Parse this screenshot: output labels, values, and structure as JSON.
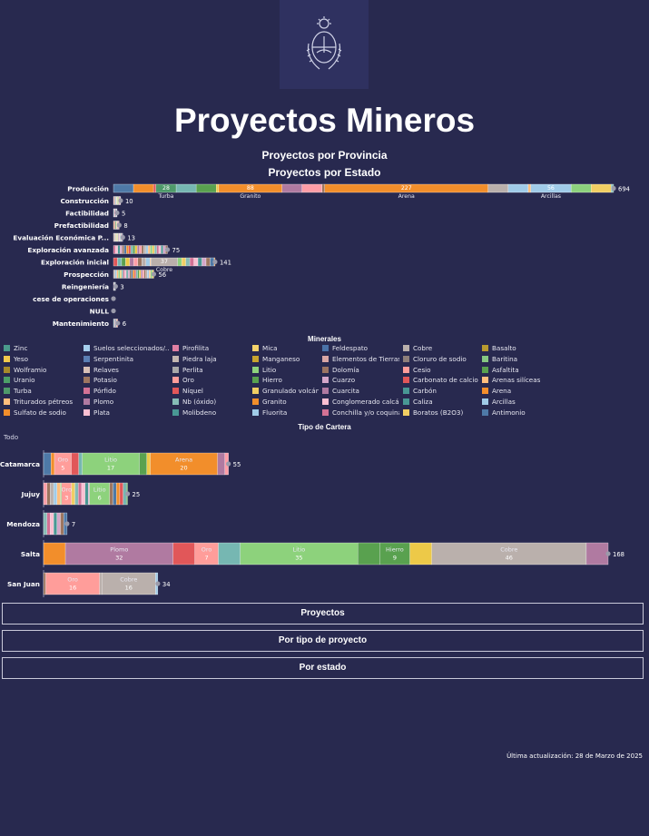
{
  "header": {
    "title": "Proyectos Mineros",
    "subtitle_provincia": "Proyectos por Provincia",
    "subtitle_estado": "Proyectos por Estado",
    "legend_title": "Minerales",
    "cartera_title": "Tipo de Cartera",
    "todo_label": "Todo"
  },
  "minerals": [
    {
      "name": "Zinc",
      "color": "#4a9a8c"
    },
    {
      "name": "Suelos seleccionados/...",
      "color": "#a6cfee"
    },
    {
      "name": "Pirofilita",
      "color": "#e07fa3"
    },
    {
      "name": "Mica",
      "color": "#f5d36b"
    },
    {
      "name": "Feldespato",
      "color": "#4a72a8"
    },
    {
      "name": "Cobre",
      "color": "#bab0ac"
    },
    {
      "name": "Basalto",
      "color": "#b89a2f"
    },
    {
      "name": "Yeso",
      "color": "#f2c94c"
    },
    {
      "name": "Serpentinita",
      "color": "#5b7fb4"
    },
    {
      "name": "Piedra laja",
      "color": "#c3b6b0"
    },
    {
      "name": "Manganeso",
      "color": "#c8a42e"
    },
    {
      "name": "Elementos de Tierras ...",
      "color": "#d9a6a4"
    },
    {
      "name": "Cloruro de sodio",
      "color": "#8e7f7a"
    },
    {
      "name": "Baritina",
      "color": "#86c882"
    },
    {
      "name": "Wolframio",
      "color": "#a68a2a"
    },
    {
      "name": "Relaves",
      "color": "#d8c0b6"
    },
    {
      "name": "Perlita",
      "color": "#a8a8a8"
    },
    {
      "name": "Litio",
      "color": "#8dd27c"
    },
    {
      "name": "Dolomía",
      "color": "#9b7462"
    },
    {
      "name": "Cesio",
      "color": "#ff9d9a"
    },
    {
      "name": "Asfaltita",
      "color": "#59a14f"
    },
    {
      "name": "Uranio",
      "color": "#4c9f68"
    },
    {
      "name": "Potasio",
      "color": "#9d7660"
    },
    {
      "name": "Oro",
      "color": "#ff9d9a"
    },
    {
      "name": "Hierro",
      "color": "#59a14f"
    },
    {
      "name": "Cuarzo",
      "color": "#d4a6c8"
    },
    {
      "name": "Carbonato de calcio",
      "color": "#e15759"
    },
    {
      "name": "Arenas silíceas",
      "color": "#ffbe7d"
    },
    {
      "name": "Turba",
      "color": "#4e9a6a"
    },
    {
      "name": "Pórfido",
      "color": "#d37295"
    },
    {
      "name": "Níquel",
      "color": "#e15759"
    },
    {
      "name": "Granulado volcánico",
      "color": "#f1ce63"
    },
    {
      "name": "Cuarcita",
      "color": "#b07aa1"
    },
    {
      "name": "Carbón",
      "color": "#499894"
    },
    {
      "name": "Arena",
      "color": "#f28e2b"
    },
    {
      "name": "Triturados pétreos",
      "color": "#ffbe7d"
    },
    {
      "name": "Plomo",
      "color": "#b07aa1"
    },
    {
      "name": "Nb (óxido)",
      "color": "#86bcb6"
    },
    {
      "name": "Granito",
      "color": "#f28e2b"
    },
    {
      "name": "Conglomerado calcár...",
      "color": "#fabfd2"
    },
    {
      "name": "Caliza",
      "color": "#499894"
    },
    {
      "name": "Arcillas",
      "color": "#a0cbe8"
    },
    {
      "name": "Sulfato de sodio",
      "color": "#f28e2b"
    },
    {
      "name": "Plata",
      "color": "#fabfd2"
    },
    {
      "name": "Molibdeno",
      "color": "#499894"
    },
    {
      "name": "Fluorita",
      "color": "#a0cbe8"
    },
    {
      "name": "Conchilla y/o coquina",
      "color": "#d37295"
    },
    {
      "name": "Boratos (B2O3)",
      "color": "#f1ce63"
    },
    {
      "name": "Antimonio",
      "color": "#4e79a7"
    }
  ],
  "chart_data": [
    {
      "type": "bar",
      "orientation": "horizontal-stacked",
      "title": "Proyectos por Estado",
      "categories": [
        "Producción",
        "Construcción",
        "Factibilidad",
        "Prefactibilidad",
        "Evaluación Económica P...",
        "Exploración avanzada",
        "Exploración inicial",
        "Prospección",
        "Reingeniería",
        "cese de operaciones",
        "NULL",
        "Mantenimiento"
      ],
      "totals": [
        694,
        10,
        5,
        8,
        13,
        75,
        141,
        56,
        3,
        0,
        0,
        6
      ],
      "segment_labels": [
        {
          "row": "Producción",
          "mineral": "Turba",
          "value": 28
        },
        {
          "row": "Producción",
          "mineral": "Granito",
          "value": 88
        },
        {
          "row": "Producción",
          "mineral": "Arena",
          "value": 227
        },
        {
          "row": "Producción",
          "mineral": "Arcillas",
          "value": 56
        },
        {
          "row": "Exploración inicial",
          "mineral": "Cobre",
          "value": 37
        }
      ]
    },
    {
      "type": "bar",
      "orientation": "horizontal-stacked",
      "title": "Tipo de Cartera",
      "categories": [
        "Catamarca",
        "Jujuy",
        "Mendoza",
        "Salta",
        "San Juan"
      ],
      "totals": [
        55,
        25,
        7,
        168,
        34
      ],
      "segment_labels": [
        {
          "row": "Catamarca",
          "mineral": "Oro",
          "value": 5
        },
        {
          "row": "Catamarca",
          "mineral": "Litio",
          "value": 17
        },
        {
          "row": "Catamarca",
          "mineral": "Arena",
          "value": 20
        },
        {
          "row": "Jujuy",
          "mineral": "Oro",
          "value": 3
        },
        {
          "row": "Jujuy",
          "mineral": "Litio",
          "value": 6
        },
        {
          "row": "Salta",
          "mineral": "Plomo",
          "value": 32
        },
        {
          "row": "Salta",
          "mineral": "Oro",
          "value": 7
        },
        {
          "row": "Salta",
          "mineral": "Litio",
          "value": 35
        },
        {
          "row": "Salta",
          "mineral": "Hierro",
          "value": 9
        },
        {
          "row": "Salta",
          "mineral": "Cobre",
          "value": 46
        },
        {
          "row": "San Juan",
          "mineral": "Oro",
          "value": 16
        },
        {
          "row": "San Juan",
          "mineral": "Cobre",
          "value": 16
        }
      ]
    }
  ],
  "buttons": {
    "proyectos": "Proyectos",
    "por_tipo": "Por tipo de proyecto",
    "por_estado": "Por estado"
  },
  "footer": {
    "updated": "Última actualización: 28 de Marzo de 2025"
  }
}
